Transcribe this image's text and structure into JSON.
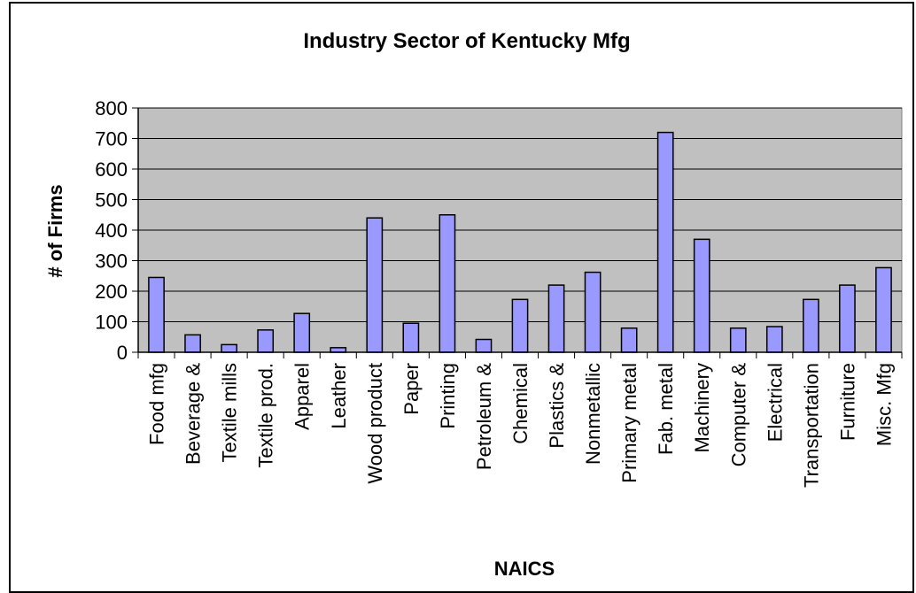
{
  "chart_data": {
    "type": "bar",
    "title": "Industry Sector of Kentucky Mfg",
    "xlabel": "NAICS",
    "ylabel": "# of Firms",
    "ylim": [
      0,
      800
    ],
    "yticks": [
      "0",
      "100",
      "200",
      "300",
      "400",
      "500",
      "600",
      "700",
      "800"
    ],
    "grid": true,
    "legend": "none",
    "categories": [
      "Food mfg",
      "Beverage &",
      "Textile mills",
      "Textile prod.",
      "Apparel",
      "Leather",
      "Wood product",
      "Paper",
      "Printing",
      "Petroleum &",
      "Chemical",
      "Plastics &",
      "Nonmetallic",
      "Primary metal",
      "Fab. metal",
      "Machinery",
      "Computer &",
      "Electrical",
      "Transportation",
      "Furniture",
      "Misc. Mfg"
    ],
    "values": [
      245,
      57,
      25,
      73,
      127,
      15,
      440,
      95,
      450,
      42,
      173,
      220,
      262,
      79,
      720,
      370,
      79,
      84,
      173,
      220,
      277
    ],
    "colors": {
      "bar_fill": "#9999ff",
      "bar_stroke": "#000000",
      "plot_background": "#c0c0c0",
      "gridline": "#000000"
    }
  }
}
